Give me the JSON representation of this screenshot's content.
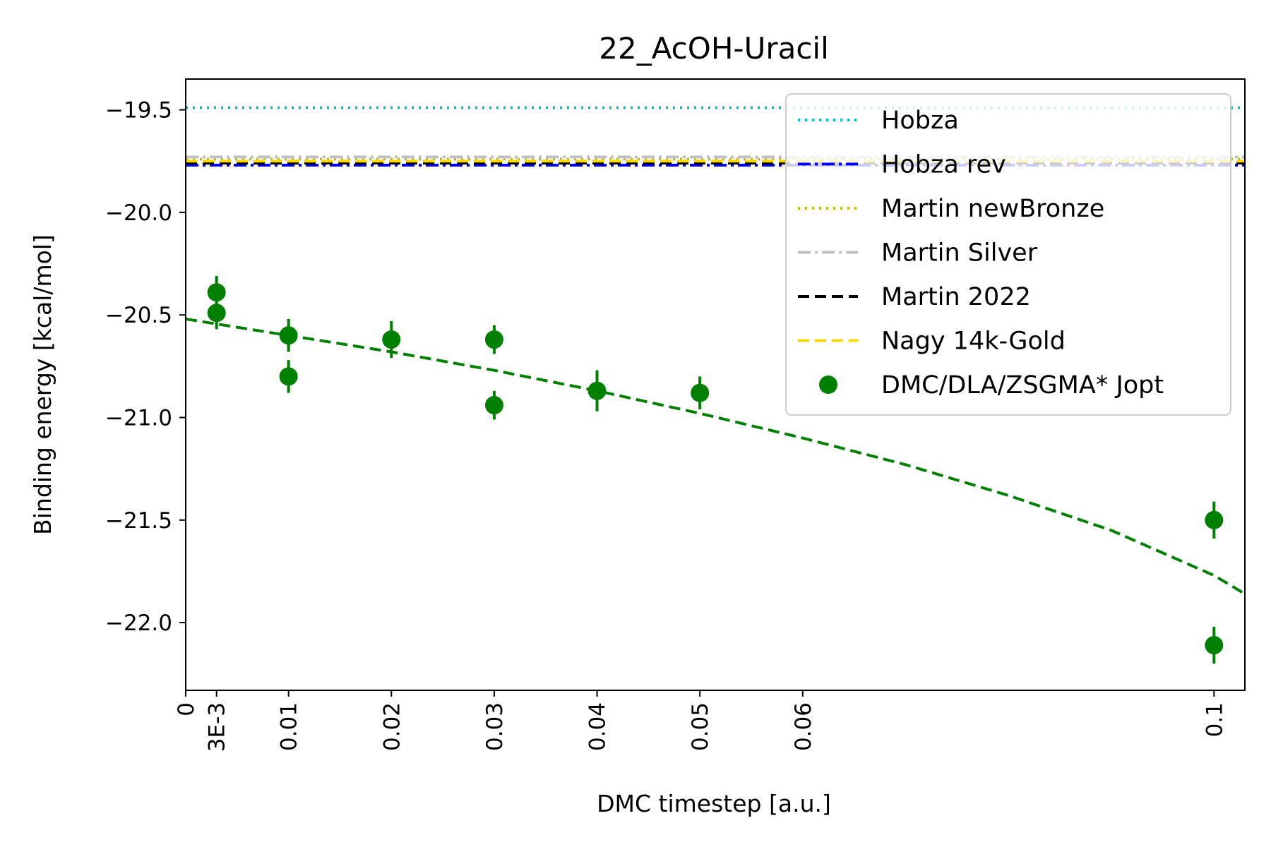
{
  "chart_data": {
    "type": "scatter",
    "title": "22_AcOH-Uracil",
    "xlabel": "DMC timestep [a.u.]",
    "ylabel": "Binding energy [kcal/mol]",
    "xlim": [
      0,
      0.103
    ],
    "ylim": [
      -22.33,
      -19.35
    ],
    "grid": false,
    "legend_position": "top-right",
    "x_ticks": [
      {
        "value": 0,
        "label": "0"
      },
      {
        "value": 0.003,
        "label": "3E-3"
      },
      {
        "value": 0.01,
        "label": "0.01"
      },
      {
        "value": 0.02,
        "label": "0.02"
      },
      {
        "value": 0.03,
        "label": "0.03"
      },
      {
        "value": 0.04,
        "label": "0.04"
      },
      {
        "value": 0.05,
        "label": "0.05"
      },
      {
        "value": 0.06,
        "label": "0.06"
      },
      {
        "value": 0.1,
        "label": "0.1"
      }
    ],
    "y_ticks": [
      {
        "value": -19.5,
        "label": "−19.5"
      },
      {
        "value": -20.0,
        "label": "−20.0"
      },
      {
        "value": -20.5,
        "label": "−20.5"
      },
      {
        "value": -21.0,
        "label": "−21.0"
      },
      {
        "value": -21.5,
        "label": "−21.5"
      },
      {
        "value": -22.0,
        "label": "−22.0"
      }
    ],
    "reference_lines": [
      {
        "name": "Hobza",
        "value": -19.49,
        "color": "#00bfbf",
        "style": "dotted"
      },
      {
        "name": "Hobza rev",
        "value": -19.77,
        "color": "#0000ff",
        "style": "dashdot"
      },
      {
        "name": "Martin newBronze",
        "value": -19.74,
        "color": "#bfbf00",
        "style": "dotted"
      },
      {
        "name": "Martin Silver",
        "value": -19.73,
        "color": "#c0c0c0",
        "style": "dashdot"
      },
      {
        "name": "Martin 2022",
        "value": -19.76,
        "color": "#000000",
        "style": "dashed"
      },
      {
        "name": "Nagy 14k-Gold",
        "value": -19.75,
        "color": "#ffd700",
        "style": "dashed"
      }
    ],
    "series": [
      {
        "name": "DMC/DLA/ZSGMA* Jopt",
        "color": "#008000",
        "points": [
          {
            "x": 0.003,
            "y": -20.39,
            "err": 0.08
          },
          {
            "x": 0.003,
            "y": -20.49,
            "err": 0.08
          },
          {
            "x": 0.01,
            "y": -20.6,
            "err": 0.08
          },
          {
            "x": 0.01,
            "y": -20.8,
            "err": 0.08
          },
          {
            "x": 0.02,
            "y": -20.62,
            "err": 0.09
          },
          {
            "x": 0.03,
            "y": -20.62,
            "err": 0.07
          },
          {
            "x": 0.03,
            "y": -20.94,
            "err": 0.07
          },
          {
            "x": 0.04,
            "y": -20.87,
            "err": 0.1
          },
          {
            "x": 0.05,
            "y": -20.88,
            "err": 0.08
          },
          {
            "x": 0.1,
            "y": -21.5,
            "err": 0.09
          },
          {
            "x": 0.1,
            "y": -22.11,
            "err": 0.09
          }
        ]
      }
    ],
    "fit": {
      "color": "#008000",
      "style": "dashed",
      "x": [
        0,
        0.01,
        0.02,
        0.03,
        0.04,
        0.05,
        0.06,
        0.07,
        0.08,
        0.09,
        0.1,
        0.103
      ],
      "y": [
        -20.52,
        -20.6,
        -20.68,
        -20.77,
        -20.87,
        -20.98,
        -21.1,
        -21.23,
        -21.38,
        -21.55,
        -21.77,
        -21.86
      ]
    },
    "legend": [
      {
        "label": "Hobza",
        "color": "#00bfbf",
        "style": "dotted",
        "marker": "line"
      },
      {
        "label": "Hobza rev",
        "color": "#0000ff",
        "style": "dashdot",
        "marker": "line"
      },
      {
        "label": "Martin newBronze",
        "color": "#bfbf00",
        "style": "dotted",
        "marker": "line"
      },
      {
        "label": "Martin Silver",
        "color": "#c0c0c0",
        "style": "dashdot",
        "marker": "line"
      },
      {
        "label": "Martin 2022",
        "color": "#000000",
        "style": "dashed",
        "marker": "line"
      },
      {
        "label": "Nagy 14k-Gold",
        "color": "#ffd700",
        "style": "dashed",
        "marker": "line"
      },
      {
        "label": "DMC/DLA/ZSGMA* Jopt",
        "color": "#008000",
        "style": "none",
        "marker": "circle"
      }
    ]
  }
}
